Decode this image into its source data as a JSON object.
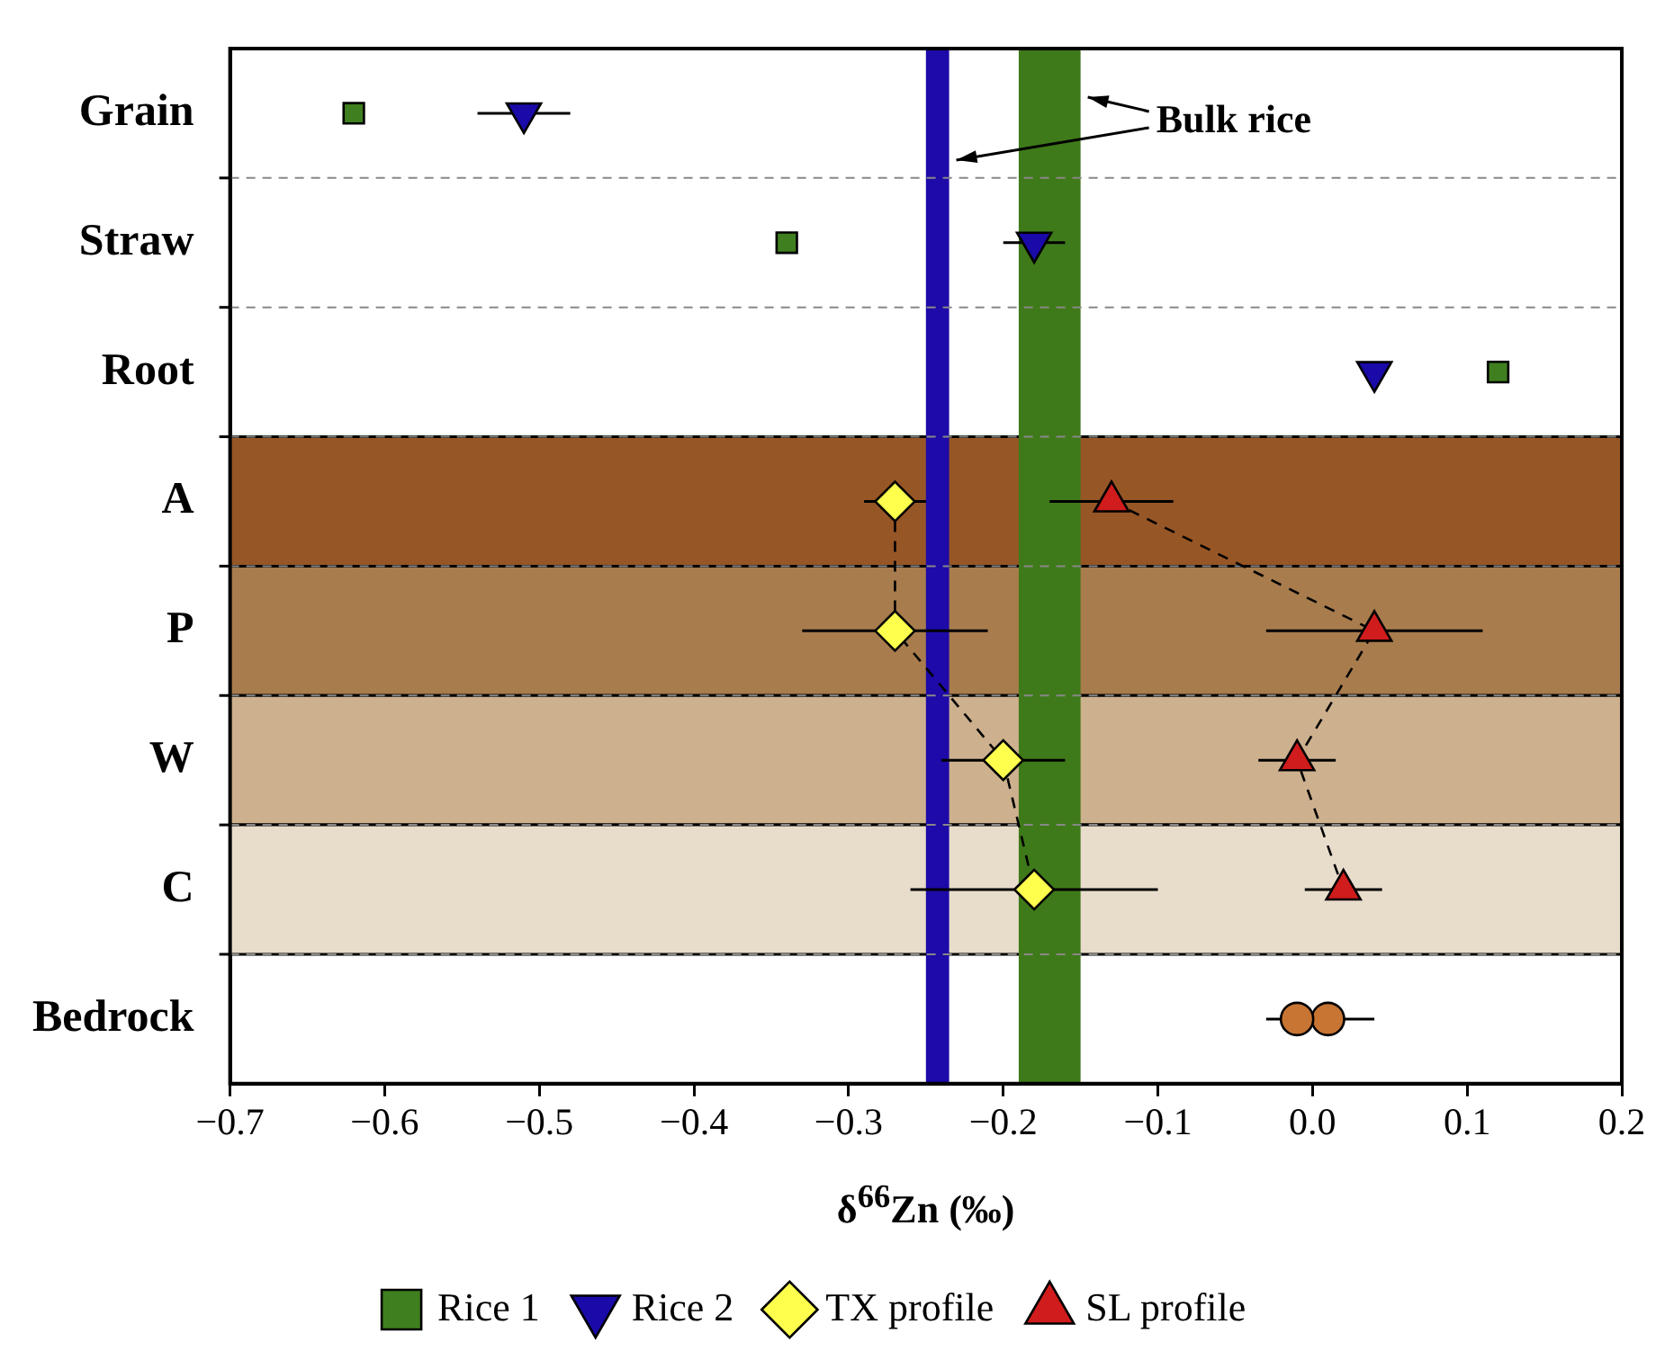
{
  "chart_data": {
    "type": "scatter",
    "orientation": "horizontal",
    "xlabel": "δ$^{66}$Zn (‰)",
    "categories": [
      "Grain",
      "Straw",
      "Root",
      "A",
      "P",
      "W",
      "C",
      "Bedrock"
    ],
    "xlim": [
      -0.7,
      0.2
    ],
    "xticks": [
      {
        "value": -0.7,
        "label": "−0.7"
      },
      {
        "value": -0.6,
        "label": "−0.6"
      },
      {
        "value": -0.5,
        "label": "−0.5"
      },
      {
        "value": -0.4,
        "label": "−0.4"
      },
      {
        "value": -0.3,
        "label": "−0.3"
      },
      {
        "value": -0.2,
        "label": "−0.2"
      },
      {
        "value": -0.1,
        "label": "−0.1"
      },
      {
        "value": 0,
        "label": "0.0"
      },
      {
        "value": 0.1,
        "label": "0.1"
      },
      {
        "value": 0.2,
        "label": "0.2"
      }
    ],
    "series": [
      {
        "name": "Rice 1",
        "type": "scatter",
        "color": "#3f7f1f",
        "marker": "square",
        "values": [
          -0.62,
          -0.34,
          0.12,
          null,
          null,
          null,
          null,
          null
        ]
      },
      {
        "name": "Rice 2",
        "type": "scatter",
        "color": "#1a0aa8",
        "marker": "triangle_down",
        "values": [
          -0.51,
          -0.18,
          0.04,
          null,
          null,
          null,
          null,
          null
        ],
        "errors": [
          0.03,
          0.02,
          null,
          null,
          null,
          null,
          null,
          null
        ]
      },
      {
        "name": "TX profile",
        "type": "line",
        "color": "#ffff4d",
        "marker": "diamond",
        "line_style": "dashed",
        "values": [
          null,
          null,
          null,
          -0.27,
          -0.27,
          -0.2,
          -0.18,
          null
        ],
        "errors": [
          null,
          null,
          null,
          0.02,
          0.06,
          0.04,
          0.08,
          null
        ]
      },
      {
        "name": "SL profile",
        "type": "line",
        "color": "#d01c1c",
        "marker": "triangle",
        "line_style": "dashed",
        "values": [
          null,
          null,
          null,
          -0.13,
          0.04,
          -0.01,
          0.02,
          null
        ],
        "errors": [
          null,
          null,
          null,
          0.04,
          0.07,
          0.025,
          0.025,
          null
        ]
      },
      {
        "type": "scatter",
        "color": "#c87533",
        "marker": "circle",
        "values": [
          null,
          null,
          null,
          null,
          null,
          null,
          null,
          -0.01
        ],
        "errors": [
          null,
          null,
          null,
          null,
          null,
          null,
          null,
          0.02
        ]
      },
      {
        "type": "scatter",
        "color": "#c87533",
        "marker": "circle",
        "values": [
          null,
          null,
          null,
          null,
          null,
          null,
          null,
          0.01
        ],
        "errors": [
          null,
          null,
          null,
          null,
          null,
          null,
          null,
          0.03
        ]
      }
    ],
    "bands": [
      {
        "axis": "y",
        "from": "A",
        "to": "A",
        "color": "#975626"
      },
      {
        "axis": "y",
        "from": "P",
        "to": "P",
        "color": "#a87c4d"
      },
      {
        "axis": "y",
        "from": "W",
        "to": "W",
        "color": "#cdb08e"
      },
      {
        "axis": "y",
        "from": "C",
        "to": "C",
        "color": "#e8dccb"
      },
      {
        "axis": "x",
        "from": -0.25,
        "to": -0.235,
        "color": "#1d0aa8"
      },
      {
        "axis": "x",
        "from": -0.19,
        "to": -0.15,
        "color": "#3f7a1a"
      }
    ],
    "annotations": [
      {
        "text": "Bulk rice",
        "x": -0.15,
        "y": "Grain"
      }
    ],
    "grid": "y",
    "legend": "bottom"
  }
}
